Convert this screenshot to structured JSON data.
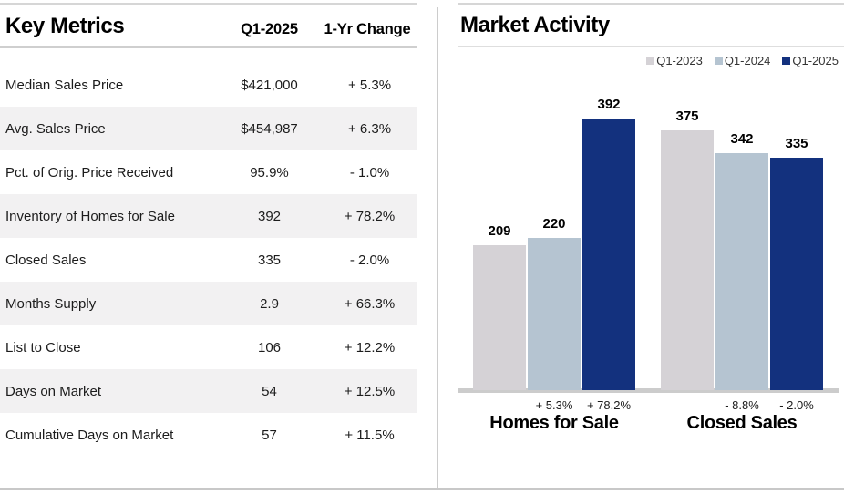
{
  "table": {
    "title": "Key Metrics",
    "columns": [
      "Q1-2025",
      "1-Yr Change"
    ],
    "rows": [
      {
        "label": "Median Sales Price",
        "value": "$421,000",
        "change": "+ 5.3%"
      },
      {
        "label": "Avg. Sales Price",
        "value": "$454,987",
        "change": "+ 6.3%"
      },
      {
        "label": "Pct. of Orig. Price Received",
        "value": "95.9%",
        "change": "- 1.0%"
      },
      {
        "label": "Inventory of Homes for Sale",
        "value": "392",
        "change": "+ 78.2%"
      },
      {
        "label": "Closed Sales",
        "value": "335",
        "change": "- 2.0%"
      },
      {
        "label": "Months Supply",
        "value": "2.9",
        "change": "+ 66.3%"
      },
      {
        "label": "List to Close",
        "value": "106",
        "change": "+ 12.2%"
      },
      {
        "label": "Days on Market",
        "value": "54",
        "change": "+ 12.5%"
      },
      {
        "label": "Cumulative Days on Market",
        "value": "57",
        "change": "+ 11.5%"
      }
    ]
  },
  "chart_data": {
    "type": "bar",
    "title": "Market Activity",
    "categories": [
      "Homes for Sale",
      "Closed Sales"
    ],
    "series": [
      {
        "name": "Q1-2023",
        "values": [
          209,
          375
        ],
        "color": "#d5d2d6"
      },
      {
        "name": "Q1-2024",
        "values": [
          220,
          342
        ],
        "color": "#b5c4d1"
      },
      {
        "name": "Q1-2025",
        "values": [
          392,
          335
        ],
        "color": "#13317e"
      }
    ],
    "change_labels": [
      [
        "+ 5.3%",
        "+ 78.2%"
      ],
      [
        "- 8.8%",
        "- 2.0%"
      ]
    ],
    "value_labels_shown": true,
    "ylim": [
      0,
      460
    ],
    "grid": false,
    "legend_position": "top-right",
    "xlabel": "",
    "ylabel": ""
  }
}
